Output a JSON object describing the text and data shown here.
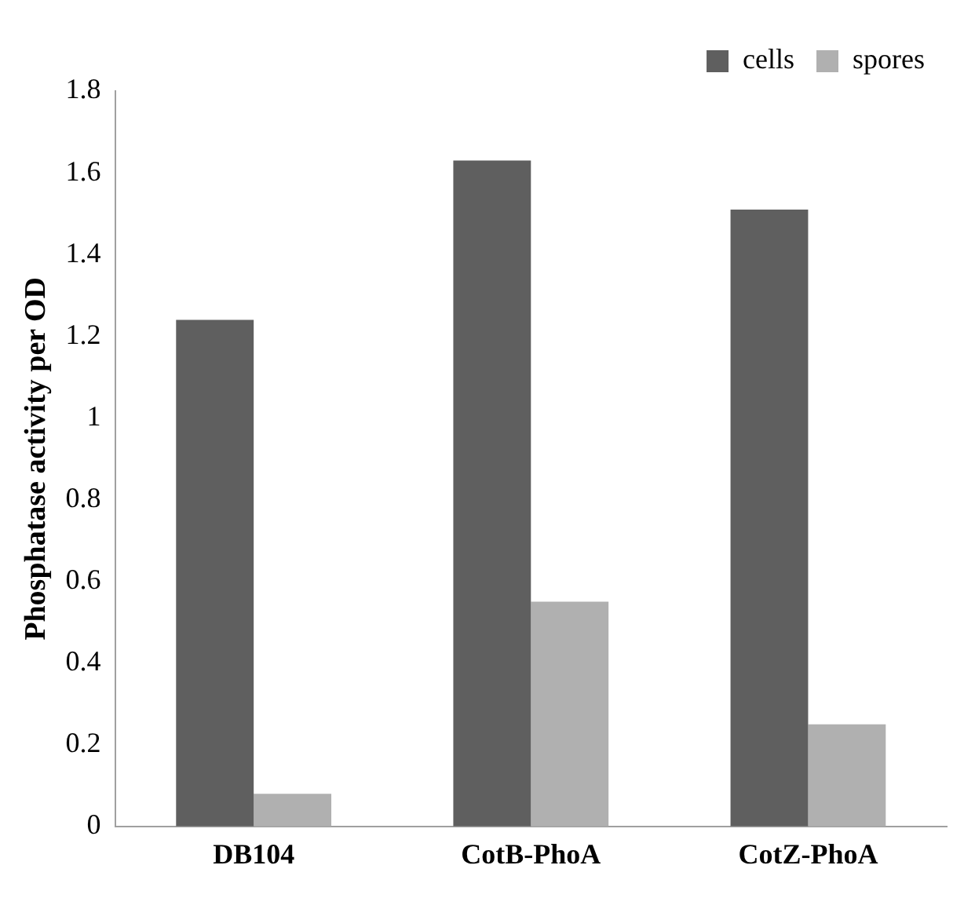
{
  "chart_data": {
    "type": "bar",
    "ylabel": "Phosphatase activity per OD",
    "categories": [
      "DB104",
      "CotB-PhoA",
      "CotZ-PhoA"
    ],
    "series": [
      {
        "name": "cells",
        "color": "#5f5f5f",
        "values": [
          1.24,
          1.63,
          1.51
        ]
      },
      {
        "name": "spores",
        "color": "#b0b0b0",
        "values": [
          0.08,
          0.55,
          0.25
        ]
      }
    ],
    "ylim": [
      0,
      1.8
    ],
    "yticks": [
      0,
      0.2,
      0.4,
      0.6,
      0.8,
      1,
      1.2,
      1.4,
      1.6,
      1.8
    ],
    "grid": false,
    "legend": "top right"
  }
}
